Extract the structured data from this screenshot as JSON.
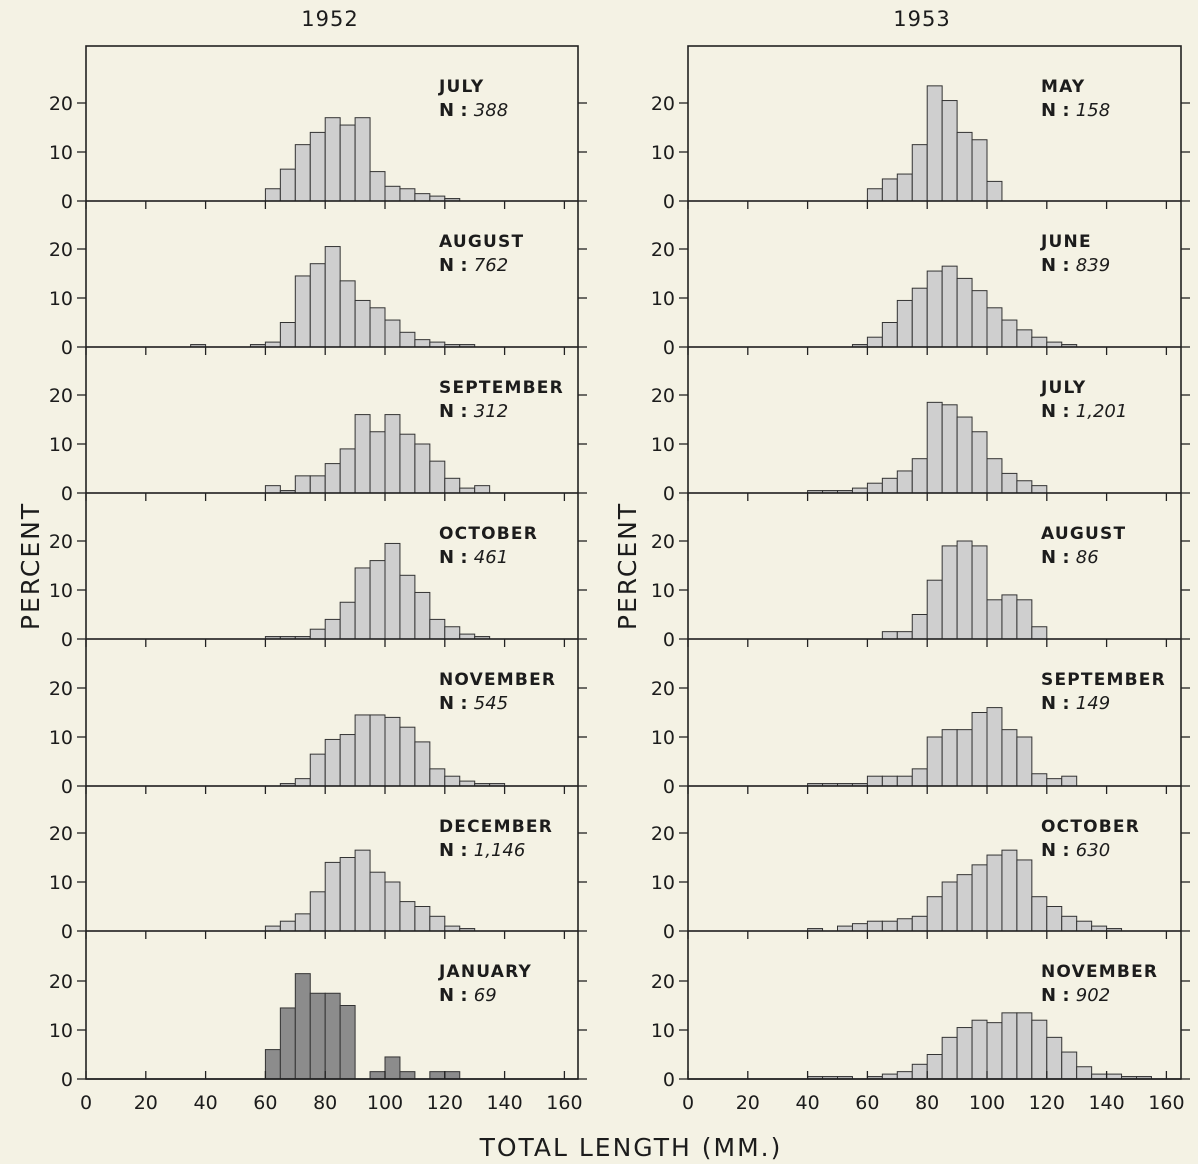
{
  "figure": {
    "xlabel": "TOTAL LENGTH (MM.)",
    "ylabel": "PERCENT",
    "x_ticks": [
      "0",
      "20",
      "40",
      "60",
      "80",
      "100",
      "120",
      "140",
      "160"
    ],
    "y_ticks": [
      "0",
      "10",
      "20"
    ]
  },
  "colors": {
    "background": "#f4f2e4",
    "bar_light": "#cfcfcf",
    "bar_dark": "#8c8c8c",
    "bar_trace": "#b5b5b5",
    "axis": "#222222"
  },
  "chart_data": [
    {
      "type": "bar",
      "title": "1952",
      "xlabel": "TOTAL LENGTH (MM.)",
      "ylabel": "PERCENT",
      "xlim": [
        0,
        165
      ],
      "ylim": [
        0,
        25
      ],
      "bin_width_mm": 5,
      "bin_starts_mm": [
        35,
        40,
        45,
        50,
        55,
        60,
        65,
        70,
        75,
        80,
        85,
        90,
        95,
        100,
        105,
        110,
        115,
        120,
        125,
        130,
        135,
        140,
        145
      ],
      "panels": [
        {
          "month": "JULY",
          "n_prefix": "N :",
          "n_value": "388",
          "values": [
            0,
            0,
            0,
            0,
            0,
            2.5,
            6.5,
            11.5,
            14,
            17,
            15.5,
            17,
            6,
            3,
            2.5,
            1.5,
            1,
            0.5,
            0,
            0,
            0,
            0,
            0
          ]
        },
        {
          "month": "AUGUST",
          "n_prefix": "N :",
          "n_value": "762",
          "values": [
            0.5,
            0,
            0,
            0,
            0.5,
            1,
            5,
            14.5,
            17,
            20.5,
            13.5,
            9.5,
            8,
            5.5,
            3,
            1.5,
            1,
            0.5,
            0.5,
            0,
            0,
            0,
            0
          ]
        },
        {
          "month": "SEPTEMBER",
          "n_prefix": "N :",
          "n_value": "312",
          "values": [
            0,
            0,
            0,
            0,
            0,
            1.5,
            0.5,
            3.5,
            3.5,
            6,
            9,
            16,
            12.5,
            16,
            12,
            10,
            6.5,
            3,
            1,
            1.5,
            0,
            0,
            0
          ]
        },
        {
          "month": "OCTOBER",
          "n_prefix": "N :",
          "n_value": "461",
          "values": [
            0,
            0,
            0,
            0,
            0,
            0.5,
            0.5,
            0.5,
            2,
            4,
            7.5,
            14.5,
            16,
            19.5,
            13,
            9.5,
            4,
            2.5,
            1,
            0.5,
            0,
            0,
            0
          ]
        },
        {
          "month": "NOVEMBER",
          "n_prefix": "N :",
          "n_value": "545",
          "values": [
            0,
            0,
            0,
            0,
            0,
            0,
            0.5,
            1.5,
            6.5,
            9.5,
            10.5,
            14.5,
            14.5,
            14,
            12,
            9,
            3.5,
            2,
            1,
            0.5,
            0.5,
            0,
            0
          ]
        },
        {
          "month": "DECEMBER",
          "n_prefix": "N :",
          "n_value": "1,146",
          "values": [
            0,
            0,
            0,
            0,
            0,
            1,
            2,
            3.5,
            8,
            14,
            15,
            16.5,
            12,
            10,
            6,
            5,
            3,
            1,
            0.5,
            0,
            0,
            0,
            0
          ]
        },
        {
          "month": "JANUARY",
          "n_prefix": "N :",
          "n_value": "69",
          "dark": true,
          "values": [
            0,
            0,
            0,
            0,
            0,
            6,
            14.5,
            21.5,
            17.5,
            17.5,
            15,
            0,
            1.5,
            4.5,
            1.5,
            0,
            1.5,
            1.5,
            0,
            0,
            0,
            0,
            0
          ]
        }
      ]
    },
    {
      "type": "bar",
      "title": "1953",
      "xlabel": "TOTAL LENGTH (MM.)",
      "ylabel": "PERCENT",
      "xlim": [
        0,
        165
      ],
      "ylim": [
        0,
        25
      ],
      "bin_width_mm": 5,
      "bin_starts_mm": [
        40,
        45,
        50,
        55,
        60,
        65,
        70,
        75,
        80,
        85,
        90,
        95,
        100,
        105,
        110,
        115,
        120,
        125,
        130,
        135,
        140,
        145,
        150
      ],
      "panels": [
        {
          "month": "MAY",
          "n_prefix": "N :",
          "n_value": "158",
          "values": [
            0,
            0,
            0,
            0,
            2.5,
            4.5,
            5.5,
            11.5,
            23.5,
            20.5,
            14,
            12.5,
            4,
            0,
            0,
            0,
            0,
            0,
            0,
            0,
            0,
            0,
            0
          ]
        },
        {
          "month": "JUNE",
          "n_prefix": "N :",
          "n_value": "839",
          "values": [
            0,
            0,
            0,
            0.5,
            2,
            5,
            9.5,
            12,
            15.5,
            16.5,
            14,
            11.5,
            8,
            5.5,
            3.5,
            2,
            1,
            0.5,
            0,
            0,
            0,
            0,
            0
          ]
        },
        {
          "month": "JULY",
          "n_prefix": "N :",
          "n_value": "1,201",
          "values": [
            0.5,
            0.5,
            0.5,
            1,
            2,
            3,
            4.5,
            7,
            18.5,
            18,
            15.5,
            12.5,
            7,
            4,
            2.5,
            1.5,
            0,
            0,
            0,
            0,
            0,
            0,
            0
          ]
        },
        {
          "month": "AUGUST",
          "n_prefix": "N :",
          "n_value": "86",
          "values": [
            0,
            0,
            0,
            0,
            0,
            1.5,
            1.5,
            5,
            12,
            19,
            20,
            19,
            8,
            9,
            8,
            2.5,
            0,
            0,
            0,
            0,
            0,
            0,
            0
          ]
        },
        {
          "month": "SEPTEMBER",
          "n_prefix": "N :",
          "n_value": "149",
          "values": [
            0.5,
            0.5,
            0.5,
            0.5,
            2,
            2,
            2,
            3.5,
            10,
            11.5,
            11.5,
            15,
            16,
            11.5,
            10,
            2.5,
            1.5,
            2,
            0,
            0,
            0,
            0,
            0
          ]
        },
        {
          "month": "OCTOBER",
          "n_prefix": "N :",
          "n_value": "630",
          "values": [
            0.5,
            0,
            1,
            1.5,
            2,
            2,
            2.5,
            3,
            7,
            10,
            11.5,
            13.5,
            15.5,
            16.5,
            14.5,
            7,
            5,
            3,
            2,
            1,
            0.5,
            0,
            0
          ]
        },
        {
          "month": "NOVEMBER",
          "n_prefix": "N :",
          "n_value": "902",
          "values": [
            0.5,
            0.5,
            0.5,
            0,
            0.5,
            1,
            1.5,
            3,
            5,
            8.5,
            10.5,
            12,
            11.5,
            13.5,
            13.5,
            12,
            8.5,
            5.5,
            2.5,
            1,
            1,
            0.5,
            0.5
          ]
        }
      ]
    }
  ]
}
